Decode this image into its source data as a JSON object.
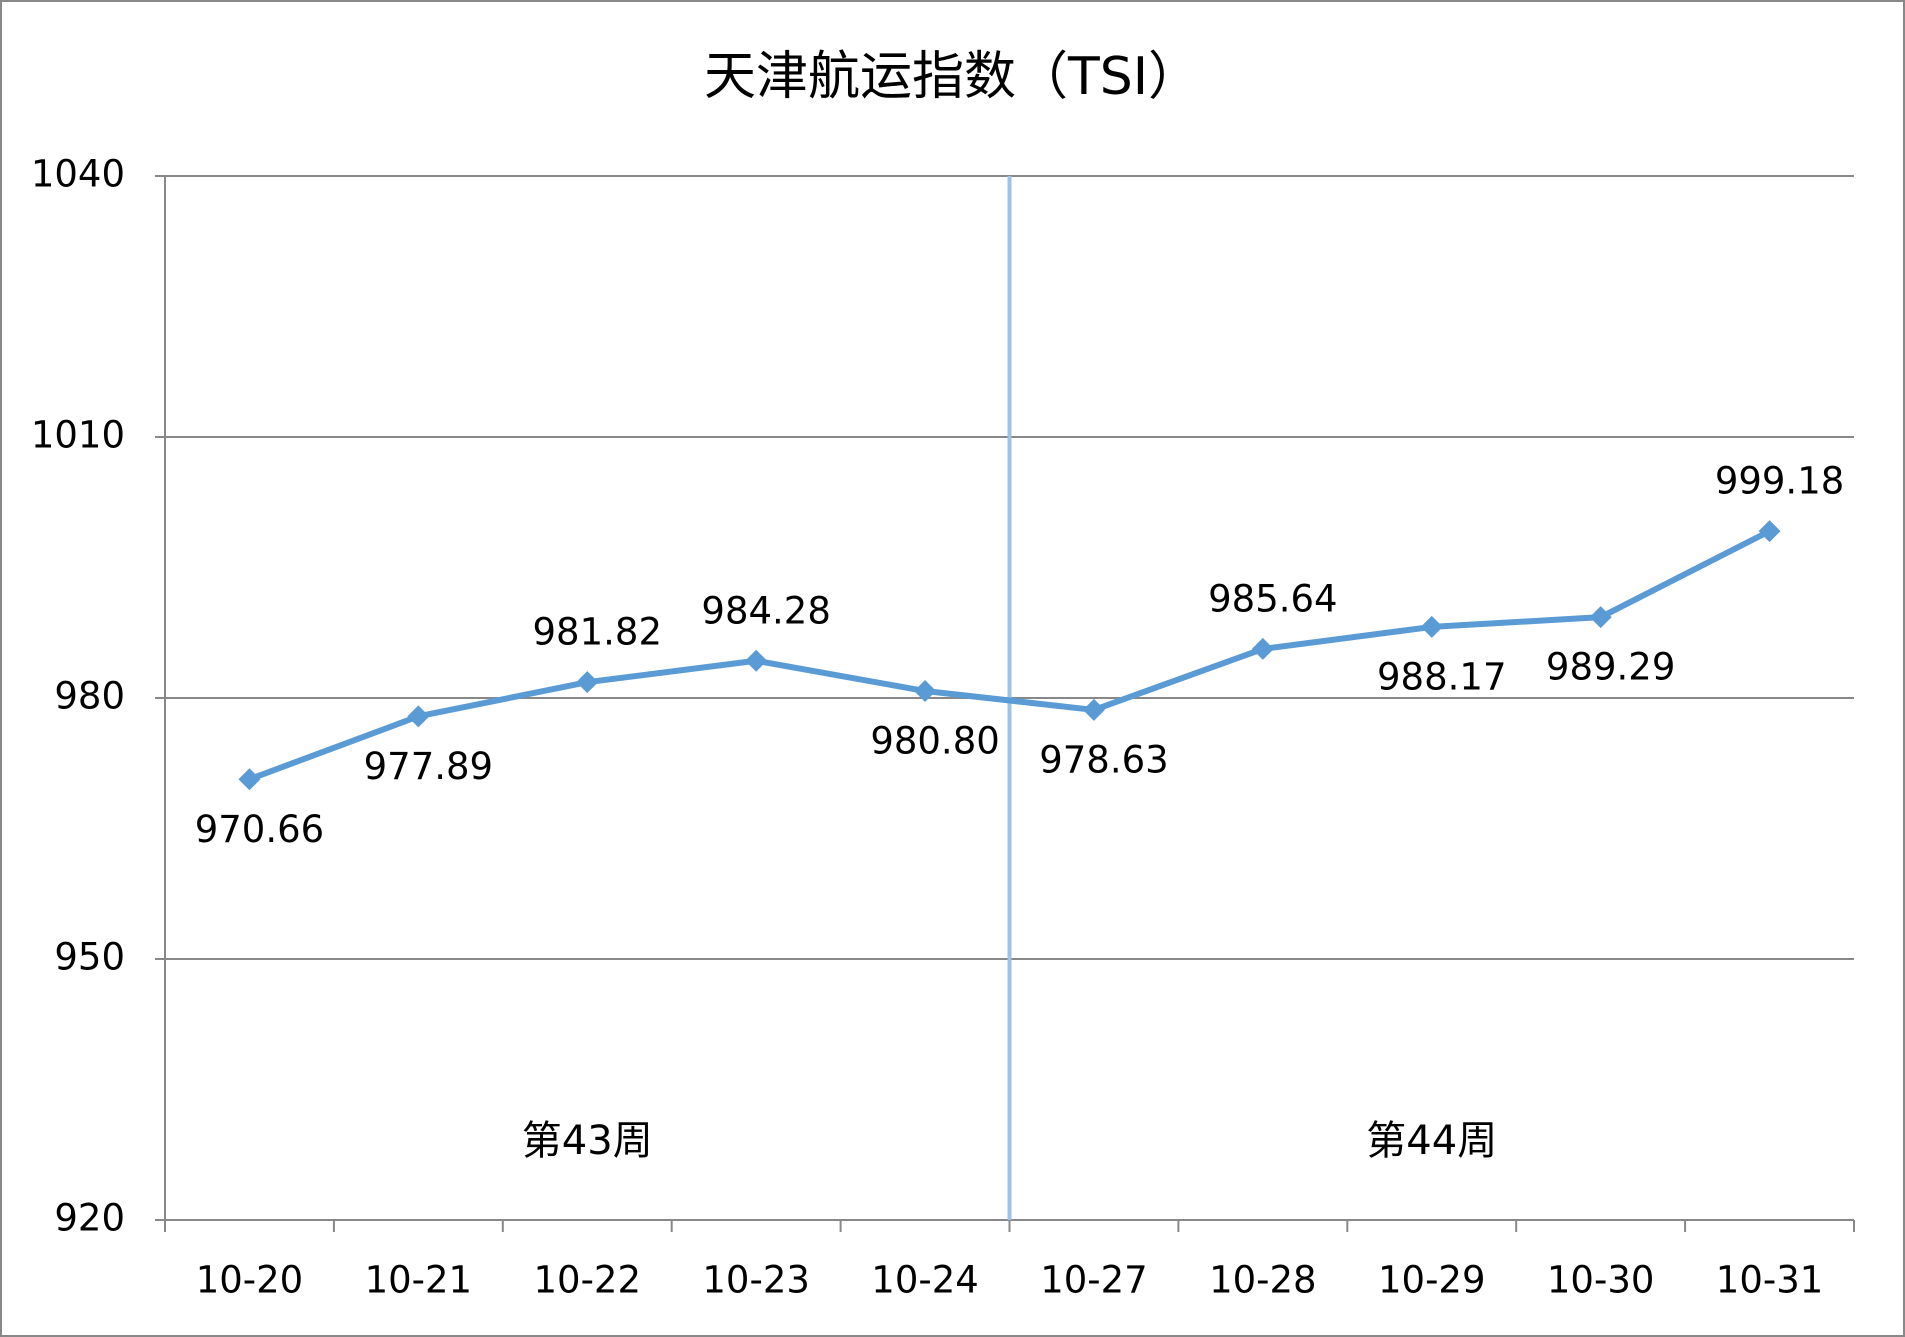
{
  "chart_data": {
    "type": "line",
    "title": "天津航运指数（TSI）",
    "categories": [
      "10-20",
      "10-21",
      "10-22",
      "10-23",
      "10-24",
      "10-27",
      "10-28",
      "10-29",
      "10-30",
      "10-31"
    ],
    "values": [
      970.66,
      977.89,
      981.82,
      984.28,
      980.8,
      978.63,
      985.64,
      988.17,
      989.29,
      999.18
    ],
    "value_labels": [
      "970.66",
      "977.89",
      "981.82",
      "984.28",
      "980.80",
      "978.63",
      "985.64",
      "988.17",
      "989.29",
      "999.18"
    ],
    "color": "#5b9bd5",
    "separator_color": "#9dc3e6",
    "annotations": [
      "第43周",
      "第44周"
    ],
    "ylim": [
      920,
      1040
    ],
    "yticks": [
      920,
      950,
      980,
      1010,
      1040
    ],
    "grid": true
  }
}
